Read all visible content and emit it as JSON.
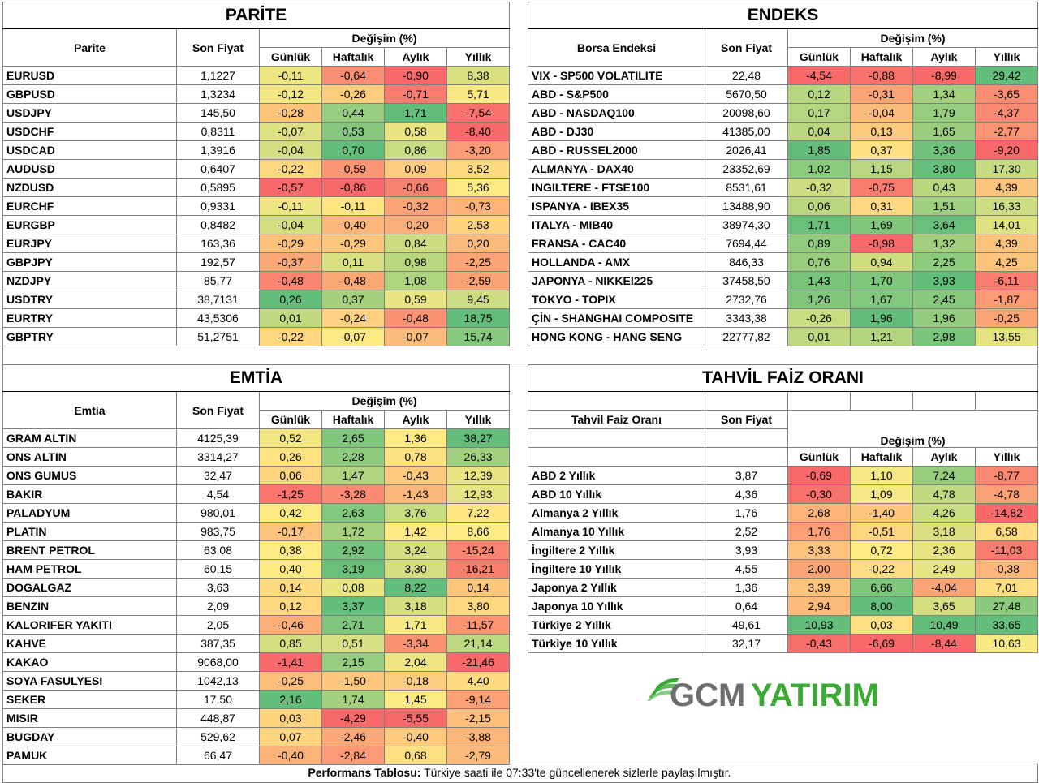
{
  "parite": {
    "title": "PARİTE",
    "col_name": "Parite",
    "col_price": "Son Fiyat",
    "col_change": "Değişim (%)",
    "sub": [
      "Günlük",
      "Haftalık",
      "Aylık",
      "Yıllık"
    ],
    "rows": [
      {
        "name": "EURUSD",
        "price": "1,1227",
        "v": [
          "-0,11",
          "-0,64",
          "-0,90",
          "8,38"
        ]
      },
      {
        "name": "GBPUSD",
        "price": "1,3234",
        "v": [
          "-0,12",
          "-0,26",
          "-0,71",
          "5,71"
        ]
      },
      {
        "name": "USDJPY",
        "price": "145,50",
        "v": [
          "-0,28",
          "0,44",
          "1,71",
          "-7,54"
        ]
      },
      {
        "name": "USDCHF",
        "price": "0,8311",
        "v": [
          "-0,07",
          "0,53",
          "0,58",
          "-8,40"
        ]
      },
      {
        "name": "USDCAD",
        "price": "1,3916",
        "v": [
          "-0,04",
          "0,70",
          "0,86",
          "-3,20"
        ]
      },
      {
        "name": "AUDUSD",
        "price": "0,6407",
        "v": [
          "-0,22",
          "-0,59",
          "0,09",
          "3,52"
        ]
      },
      {
        "name": "NZDUSD",
        "price": "0,5895",
        "v": [
          "-0,57",
          "-0,86",
          "-0,66",
          "5,36"
        ]
      },
      {
        "name": "EURCHF",
        "price": "0,9331",
        "v": [
          "-0,11",
          "-0,11",
          "-0,32",
          "-0,73"
        ]
      },
      {
        "name": "EURGBP",
        "price": "0,8482",
        "v": [
          "-0,04",
          "-0,40",
          "-0,20",
          "2,53"
        ]
      },
      {
        "name": "EURJPY",
        "price": "163,36",
        "v": [
          "-0,29",
          "-0,29",
          "0,84",
          "0,20"
        ]
      },
      {
        "name": "GBPJPY",
        "price": "192,57",
        "v": [
          "-0,37",
          "0,11",
          "0,98",
          "-2,25"
        ]
      },
      {
        "name": "NZDJPY",
        "price": "85,77",
        "v": [
          "-0,48",
          "-0,48",
          "1,08",
          "-2,59"
        ]
      },
      {
        "name": "USDTRY",
        "price": "38,7131",
        "v": [
          "0,26",
          "0,37",
          "0,59",
          "9,45"
        ]
      },
      {
        "name": "EURTRY",
        "price": "43,5306",
        "v": [
          "0,01",
          "-0,24",
          "-0,48",
          "18,75"
        ]
      },
      {
        "name": "GBPTRY",
        "price": "51,2751",
        "v": [
          "-0,22",
          "-0,07",
          "-0,07",
          "15,74"
        ]
      }
    ]
  },
  "endeks": {
    "title": "ENDEKS",
    "col_name": "Borsa Endeksi",
    "col_price": "Son Fiyat",
    "col_change": "Değişim (%)",
    "sub": [
      "Günlük",
      "Haftalık",
      "Aylık",
      "Yıllık"
    ],
    "rows": [
      {
        "name": "VIX  - SP500 VOLATILITE",
        "price": "22,48",
        "v": [
          "-4,54",
          "-0,88",
          "-8,99",
          "29,42"
        ]
      },
      {
        "name": "ABD - S&P500",
        "price": "5670,50",
        "v": [
          "0,12",
          "-0,31",
          "1,34",
          "-3,65"
        ]
      },
      {
        "name": "ABD - NASDAQ100",
        "price": "20098,60",
        "v": [
          "0,17",
          "-0,04",
          "1,79",
          "-4,37"
        ]
      },
      {
        "name": "ABD - DJ30",
        "price": "41385,00",
        "v": [
          "0,04",
          "0,13",
          "1,65",
          "-2,77"
        ]
      },
      {
        "name": "ABD - RUSSEL2000",
        "price": "2026,41",
        "v": [
          "1,85",
          "0,37",
          "3,36",
          "-9,20"
        ]
      },
      {
        "name": "ALMANYA - DAX40",
        "price": "23352,69",
        "v": [
          "1,02",
          "1,15",
          "3,80",
          "17,30"
        ]
      },
      {
        "name": "INGILTERE - FTSE100",
        "price": "8531,61",
        "v": [
          "-0,32",
          "-0,75",
          "0,43",
          "4,39"
        ]
      },
      {
        "name": "ISPANYA - IBEX35",
        "price": "13488,90",
        "v": [
          "0,06",
          "0,31",
          "1,51",
          "16,33"
        ]
      },
      {
        "name": "ITALYA - MIB40",
        "price": "38974,30",
        "v": [
          "1,71",
          "1,69",
          "3,64",
          "14,01"
        ]
      },
      {
        "name": "FRANSA - CAC40",
        "price": "7694,44",
        "v": [
          "0,89",
          "-0,98",
          "1,32",
          "4,39"
        ]
      },
      {
        "name": "HOLLANDA - AMX",
        "price": "846,33",
        "v": [
          "0,76",
          "0,94",
          "2,25",
          "4,25"
        ]
      },
      {
        "name": "JAPONYA - NIKKEI225",
        "price": "37458,50",
        "v": [
          "1,43",
          "1,70",
          "3,93",
          "-6,11"
        ]
      },
      {
        "name": "TOKYO - TOPIX",
        "price": "2732,76",
        "v": [
          "1,26",
          "1,67",
          "2,45",
          "-1,87"
        ]
      },
      {
        "name": "ÇİN - SHANGHAI COMPOSITE",
        "price": "3343,38",
        "v": [
          "-0,26",
          "1,96",
          "1,96",
          "-0,25"
        ]
      },
      {
        "name": "HONG KONG - HANG SENG",
        "price": "22777,82",
        "v": [
          "0,01",
          "1,21",
          "2,98",
          "13,55"
        ]
      }
    ]
  },
  "emtia": {
    "title": "EMTİA",
    "col_name": "Emtia",
    "col_price": "Son Fiyat",
    "col_change": "Değişim (%)",
    "sub": [
      "Günlük",
      "Haftalık",
      "Aylık",
      "Yıllık"
    ],
    "rows": [
      {
        "name": "GRAM ALTIN",
        "price": "4125,39",
        "v": [
          "0,52",
          "2,65",
          "1,36",
          "38,27"
        ]
      },
      {
        "name": "ONS ALTIN",
        "price": "3314,27",
        "v": [
          "0,26",
          "2,28",
          "0,78",
          "26,33"
        ]
      },
      {
        "name": "ONS GUMUS",
        "price": "32,47",
        "v": [
          "0,06",
          "1,47",
          "-0,43",
          "12,39"
        ]
      },
      {
        "name": "BAKIR",
        "price": "4,54",
        "v": [
          "-1,25",
          "-3,28",
          "-1,43",
          "12,93"
        ]
      },
      {
        "name": "PALADYUM",
        "price": "980,01",
        "v": [
          "0,42",
          "2,63",
          "3,76",
          "7,22"
        ]
      },
      {
        "name": "PLATIN",
        "price": "983,75",
        "v": [
          "-0,17",
          "1,72",
          "1,42",
          "8,66"
        ]
      },
      {
        "name": "BRENT PETROL",
        "price": "63,08",
        "v": [
          "0,38",
          "2,92",
          "3,24",
          "-15,24"
        ]
      },
      {
        "name": "HAM PETROL",
        "price": "60,15",
        "v": [
          "0,40",
          "3,19",
          "3,30",
          "-16,21"
        ]
      },
      {
        "name": "DOGALGAZ",
        "price": "3,63",
        "v": [
          "0,14",
          "0,08",
          "8,22",
          "0,14"
        ]
      },
      {
        "name": "BENZIN",
        "price": "2,09",
        "v": [
          "0,12",
          "3,37",
          "3,18",
          "3,80"
        ]
      },
      {
        "name": "KALORIFER YAKITI",
        "price": "2,05",
        "v": [
          "-0,46",
          "2,71",
          "1,71",
          "-11,57"
        ]
      },
      {
        "name": "KAHVE",
        "price": "387,35",
        "v": [
          "0,85",
          "0,51",
          "-3,34",
          "21,14"
        ]
      },
      {
        "name": "KAKAO",
        "price": "9068,00",
        "v": [
          "-1,41",
          "2,15",
          "2,04",
          "-21,46"
        ]
      },
      {
        "name": "SOYA FASULYESI",
        "price": "1042,13",
        "v": [
          "-0,25",
          "-1,50",
          "-0,18",
          "4,40"
        ]
      },
      {
        "name": "SEKER",
        "price": "17,50",
        "v": [
          "2,16",
          "1,74",
          "1,45",
          "-9,14"
        ]
      },
      {
        "name": "MISIR",
        "price": "448,87",
        "v": [
          "0,03",
          "-4,29",
          "-5,55",
          "-2,15"
        ]
      },
      {
        "name": "BUGDAY",
        "price": "529,62",
        "v": [
          "0,07",
          "-2,46",
          "-0,40",
          "-3,88"
        ]
      },
      {
        "name": "PAMUK",
        "price": "66,47",
        "v": [
          "-0,40",
          "-2,84",
          "0,68",
          "-2,79"
        ]
      }
    ]
  },
  "tahvil": {
    "title": "TAHVİL FAİZ ORANI",
    "col_name": "Tahvil Faiz Oranı",
    "col_price": "Son Fiyat",
    "col_change": "Değişim (%)",
    "sub": [
      "Günlük",
      "Haftalık",
      "Aylık",
      "Yıllık"
    ],
    "rows": [
      {
        "name": "ABD 2 Yıllık",
        "price": "3,87",
        "v": [
          "-0,69",
          "1,10",
          "7,24",
          "-8,77"
        ]
      },
      {
        "name": "ABD 10 Yıllık",
        "price": "4,36",
        "v": [
          "-0,30",
          "1,09",
          "4,78",
          "-4,78"
        ]
      },
      {
        "name": "Almanya 2 Yıllık",
        "price": "1,76",
        "v": [
          "2,68",
          "-1,40",
          "4,26",
          "-14,82"
        ]
      },
      {
        "name": "Almanya 10 Yıllık",
        "price": "2,52",
        "v": [
          "1,76",
          "-0,51",
          "3,18",
          "6,58"
        ]
      },
      {
        "name": "İngiltere 2 Yıllık",
        "price": "3,93",
        "v": [
          "3,33",
          "0,72",
          "2,36",
          "-11,03"
        ]
      },
      {
        "name": "İngiltere 10 Yıllık",
        "price": "4,55",
        "v": [
          "2,00",
          "-0,22",
          "2,49",
          "-0,38"
        ]
      },
      {
        "name": "Japonya 2 Yıllık",
        "price": "1,36",
        "v": [
          "3,39",
          "6,66",
          "-4,04",
          "7,01"
        ]
      },
      {
        "name": "Japonya 10 Yıllık",
        "price": "0,64",
        "v": [
          "2,94",
          "8,00",
          "3,65",
          "27,48"
        ]
      },
      {
        "name": "Türkiye 2 Yıllık",
        "price": "49,61",
        "v": [
          "10,93",
          "0,03",
          "10,49",
          "33,65"
        ]
      },
      {
        "name": "Türkiye 10 Yıllık",
        "price": "32,17",
        "v": [
          "-0,43",
          "-6,69",
          "-8,44",
          "10,63"
        ]
      }
    ]
  },
  "logo": {
    "part1": "GCM",
    "part2": "YATIRIM",
    "green": "#3aaa35",
    "gray": "#6d6e71"
  },
  "footer": {
    "label": "Performans Tablosu:",
    "text": " Türkiye saati ile 07:33'te güncellenerek sizlerle paylaşılmıştır."
  },
  "colors": {
    "red": "#f8696b",
    "yellow": "#ffeb84",
    "green": "#63be7b"
  }
}
